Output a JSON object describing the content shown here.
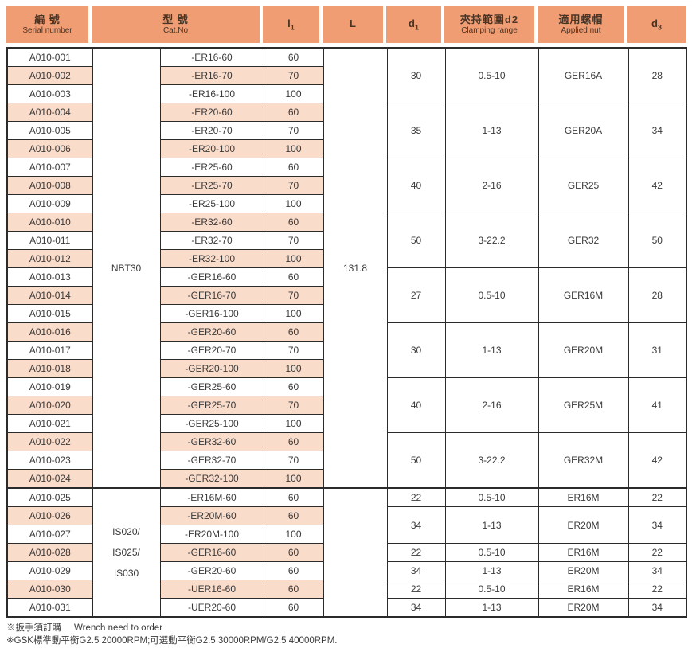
{
  "colors": {
    "header_bg": "#f09d74",
    "stripe_bg": "#fadccb",
    "border": "#2b2b2b",
    "header_text": "#483425",
    "body_text": "#3a3a3a"
  },
  "header": {
    "serial": {
      "zh": "編 號",
      "en": "Serial number"
    },
    "catno": {
      "zh": "型 號",
      "en": "Cat.No"
    },
    "l1": {
      "main": "l",
      "sub": "1"
    },
    "L": {
      "main": "L",
      "sub": ""
    },
    "d1": {
      "main": "d",
      "sub": "1"
    },
    "d2": {
      "zh": "夾持範圍d2",
      "en": "Clamping range"
    },
    "nut": {
      "zh": "適用螺帽",
      "en": "Applied nut"
    },
    "d3": {
      "main": "d",
      "sub": "3"
    }
  },
  "sections": [
    {
      "group_label_lines": [
        "NBT30"
      ],
      "L": "131.8",
      "rows": [
        {
          "serial": "A010-001",
          "model": "-ER16-60",
          "l1": "60"
        },
        {
          "serial": "A010-002",
          "model": "-ER16-70",
          "l1": "70"
        },
        {
          "serial": "A010-003",
          "model": "-ER16-100",
          "l1": "100"
        },
        {
          "serial": "A010-004",
          "model": "-ER20-60",
          "l1": "60"
        },
        {
          "serial": "A010-005",
          "model": "-ER20-70",
          "l1": "70"
        },
        {
          "serial": "A010-006",
          "model": "-ER20-100",
          "l1": "100"
        },
        {
          "serial": "A010-007",
          "model": "-ER25-60",
          "l1": "60"
        },
        {
          "serial": "A010-008",
          "model": "-ER25-70",
          "l1": "70"
        },
        {
          "serial": "A010-009",
          "model": "-ER25-100",
          "l1": "100"
        },
        {
          "serial": "A010-010",
          "model": "-ER32-60",
          "l1": "60"
        },
        {
          "serial": "A010-011",
          "model": "-ER32-70",
          "l1": "70"
        },
        {
          "serial": "A010-012",
          "model": "-ER32-100",
          "l1": "100"
        },
        {
          "serial": "A010-013",
          "model": "-GER16-60",
          "l1": "60"
        },
        {
          "serial": "A010-014",
          "model": "-GER16-70",
          "l1": "70"
        },
        {
          "serial": "A010-015",
          "model": "-GER16-100",
          "l1": "100"
        },
        {
          "serial": "A010-016",
          "model": "-GER20-60",
          "l1": "60"
        },
        {
          "serial": "A010-017",
          "model": "-GER20-70",
          "l1": "70"
        },
        {
          "serial": "A010-018",
          "model": "-GER20-100",
          "l1": "100"
        },
        {
          "serial": "A010-019",
          "model": "-GER25-60",
          "l1": "60"
        },
        {
          "serial": "A010-020",
          "model": "-GER25-70",
          "l1": "70"
        },
        {
          "serial": "A010-021",
          "model": "-GER25-100",
          "l1": "100"
        },
        {
          "serial": "A010-022",
          "model": "-GER32-60",
          "l1": "60"
        },
        {
          "serial": "A010-023",
          "model": "-GER32-70",
          "l1": "70"
        },
        {
          "serial": "A010-024",
          "model": "-GER32-100",
          "l1": "100"
        }
      ],
      "spec_groups": [
        {
          "span": 3,
          "d1": "30",
          "d2": "0.5-10",
          "nut": "GER16A",
          "d3": "28"
        },
        {
          "span": 3,
          "d1": "35",
          "d2": "1-13",
          "nut": "GER20A",
          "d3": "34"
        },
        {
          "span": 3,
          "d1": "40",
          "d2": "2-16",
          "nut": "GER25",
          "d3": "42"
        },
        {
          "span": 3,
          "d1": "50",
          "d2": "3-22.2",
          "nut": "GER32",
          "d3": "50"
        },
        {
          "span": 3,
          "d1": "27",
          "d2": "0.5-10",
          "nut": "GER16M",
          "d3": "28"
        },
        {
          "span": 3,
          "d1": "30",
          "d2": "1-13",
          "nut": "GER20M",
          "d3": "31"
        },
        {
          "span": 3,
          "d1": "40",
          "d2": "2-16",
          "nut": "GER25M",
          "d3": "41"
        },
        {
          "span": 3,
          "d1": "50",
          "d2": "3-22.2",
          "nut": "GER32M",
          "d3": "42"
        }
      ]
    },
    {
      "group_label_lines": [
        "IS020/",
        "IS025/",
        "IS030"
      ],
      "L": "",
      "rows": [
        {
          "serial": "A010-025",
          "model": "-ER16M-60",
          "l1": "60"
        },
        {
          "serial": "A010-026",
          "model": "-ER20M-60",
          "l1": "60"
        },
        {
          "serial": "A010-027",
          "model": "-ER20M-100",
          "l1": "100"
        },
        {
          "serial": "A010-028",
          "model": "-GER16-60",
          "l1": "60"
        },
        {
          "serial": "A010-029",
          "model": "-GER20-60",
          "l1": "60"
        },
        {
          "serial": "A010-030",
          "model": "-UER16-60",
          "l1": "60"
        },
        {
          "serial": "A010-031",
          "model": "-UER20-60",
          "l1": "60"
        }
      ],
      "spec_groups": [
        {
          "span": 1,
          "d1": "22",
          "d2": "0.5-10",
          "nut": "ER16M",
          "d3": "22"
        },
        {
          "span": 2,
          "d1": "34",
          "d2": "1-13",
          "nut": "ER20M",
          "d3": "34"
        },
        {
          "span": 1,
          "d1": "22",
          "d2": "0.5-10",
          "nut": "ER16M",
          "d3": "22"
        },
        {
          "span": 1,
          "d1": "34",
          "d2": "1-13",
          "nut": "ER20M",
          "d3": "34"
        },
        {
          "span": 1,
          "d1": "22",
          "d2": "0.5-10",
          "nut": "ER16M",
          "d3": "22"
        },
        {
          "span": 1,
          "d1": "34",
          "d2": "1-13",
          "nut": "ER20M",
          "d3": "34"
        }
      ]
    }
  ],
  "footnotes": [
    {
      "zh": "※扳手須訂購",
      "en": "Wrench need to order"
    },
    {
      "zh": "※GSK標準動平衡G2.5 20000RPM;可選動平衡G2.5 30000RPM/G2.5 40000RPM.",
      "en": ""
    }
  ]
}
